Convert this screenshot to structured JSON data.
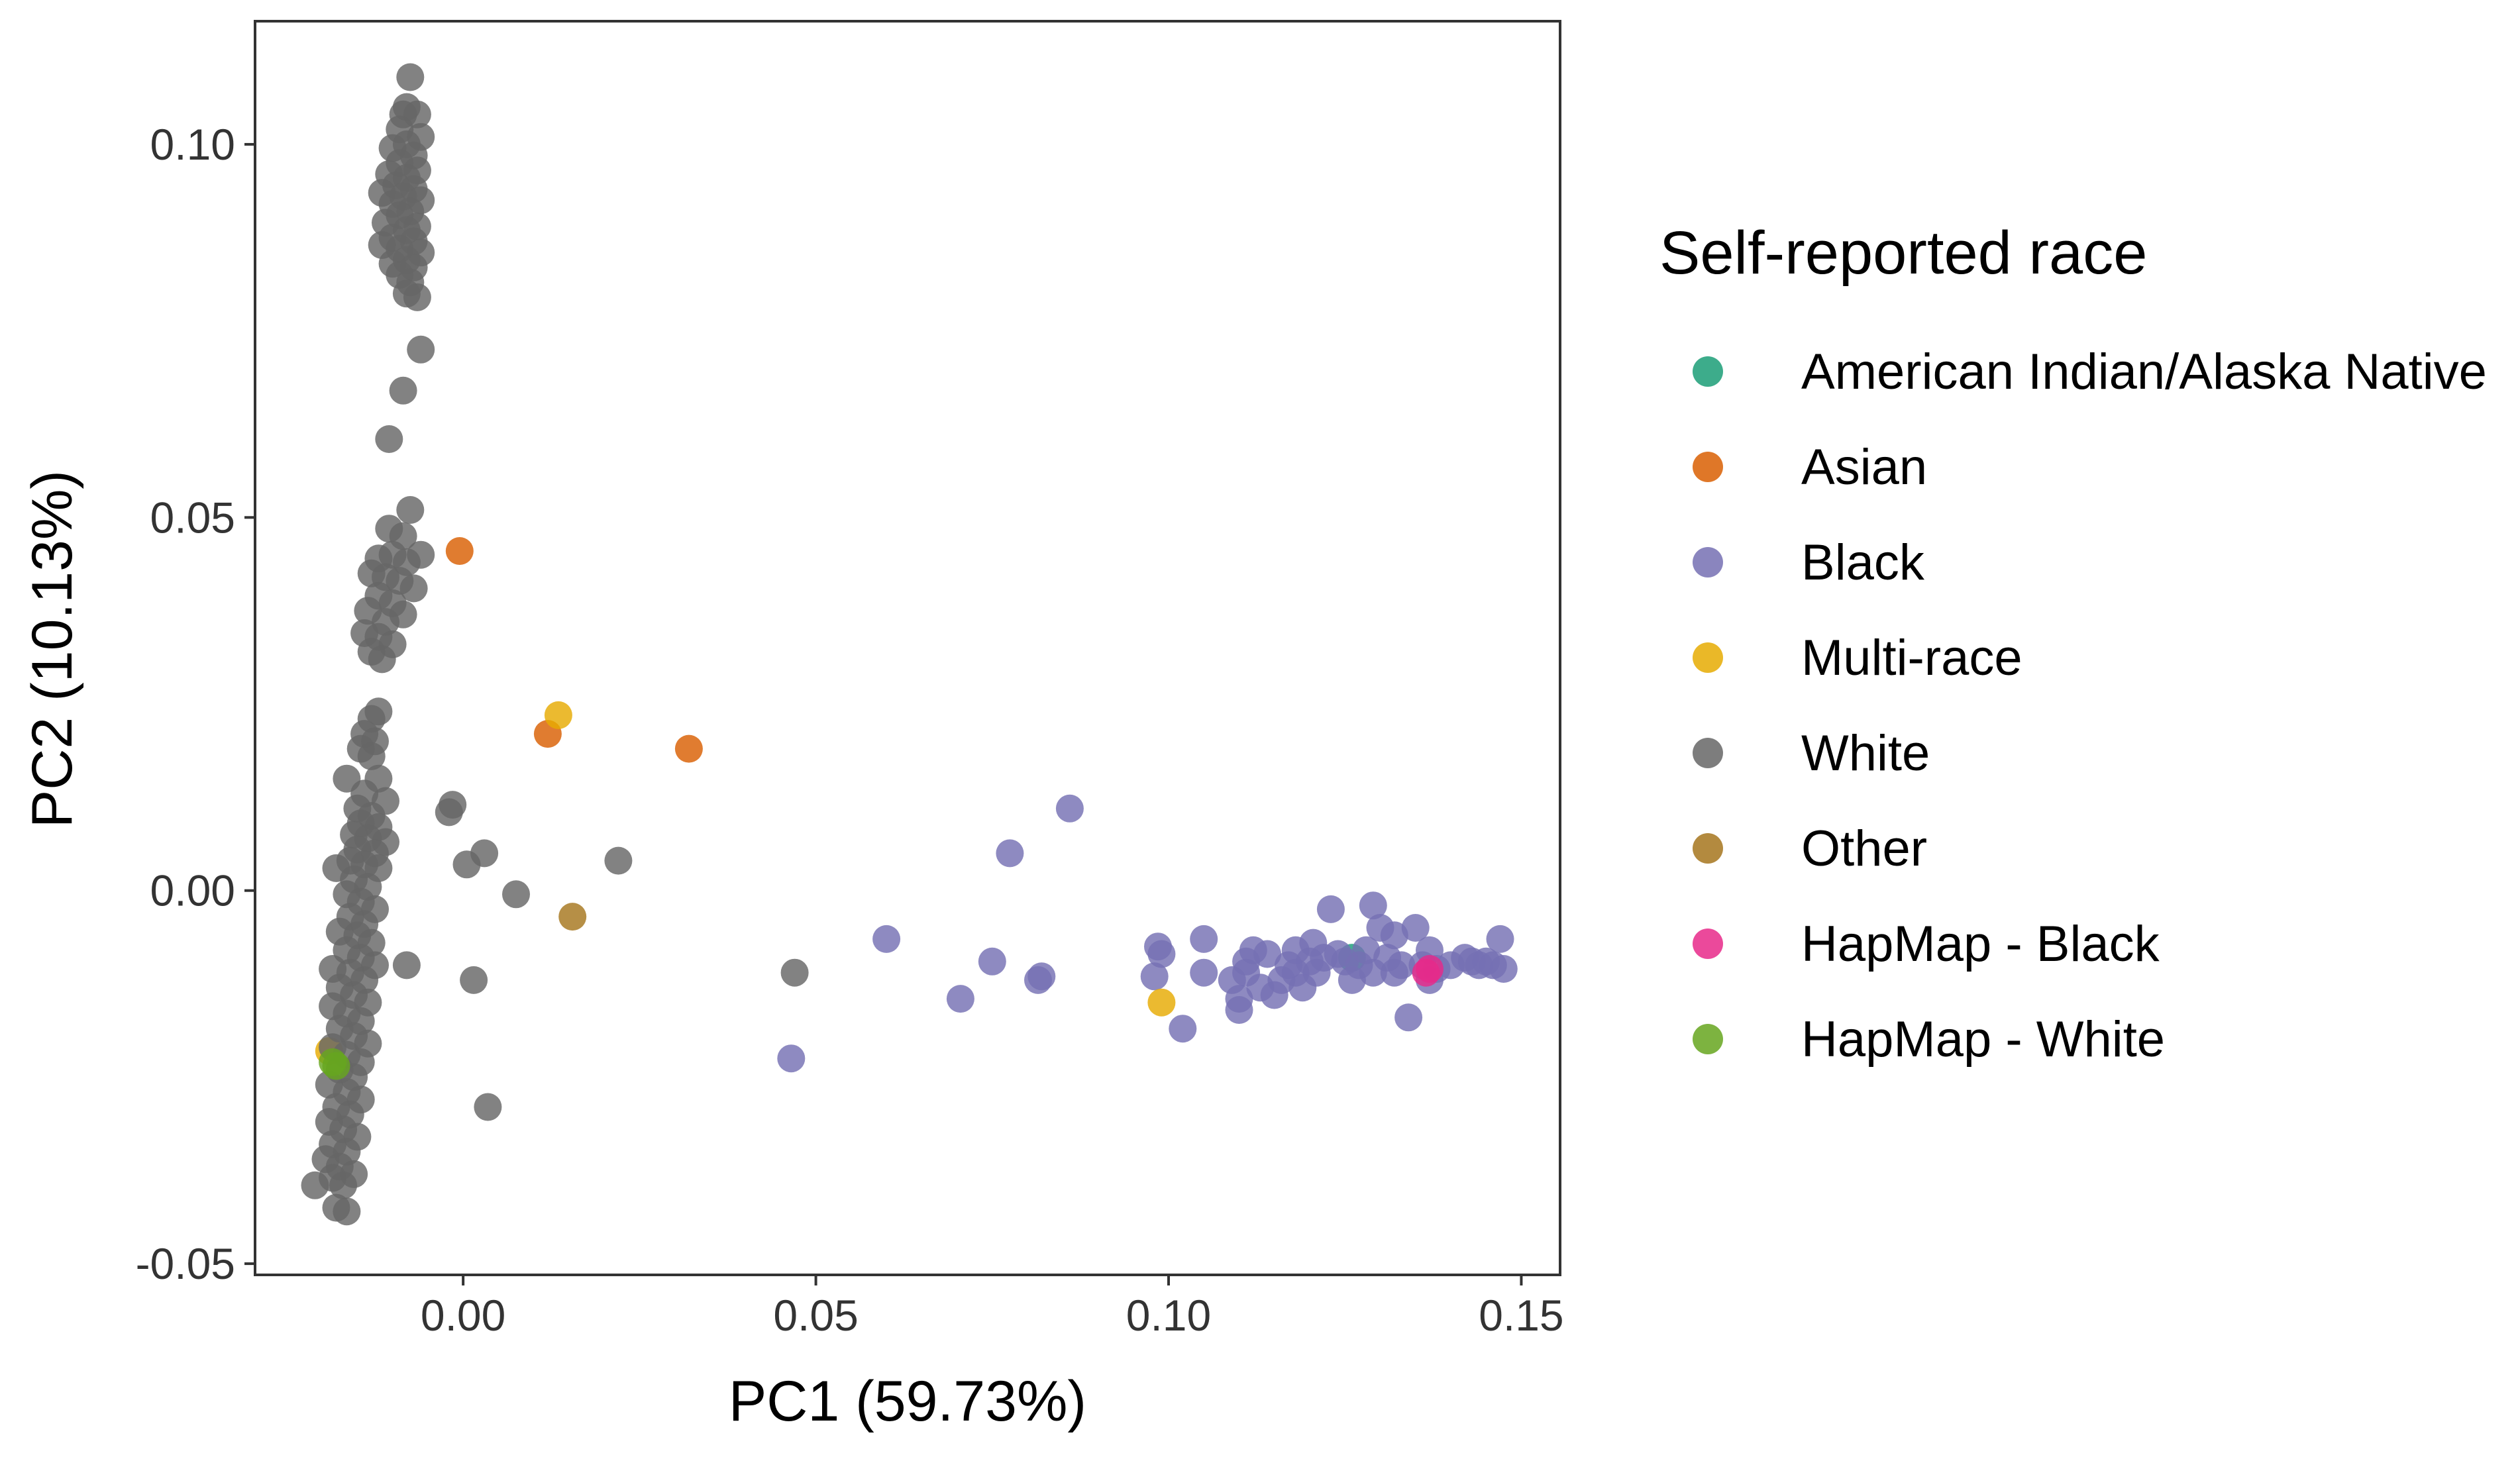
{
  "chart_data": {
    "type": "scatter",
    "title": "",
    "xlabel": "PC1 (59.73%)",
    "ylabel": "PC2 (10.13%)",
    "xlim": [
      -0.0295,
      0.1555
    ],
    "ylim": [
      -0.0515,
      0.1165
    ],
    "xticks": [
      0.0,
      0.05,
      0.1,
      0.15
    ],
    "xtick_labels": [
      "0.00",
      "0.05",
      "0.10",
      "0.15"
    ],
    "yticks": [
      -0.05,
      0.0,
      0.05,
      0.1
    ],
    "ytick_labels": [
      "-0.05",
      "0.00",
      "0.05",
      "0.10"
    ],
    "grid": false,
    "legend": {
      "title": "Self-reported race",
      "placement": "right"
    },
    "series": [
      {
        "name": "American Indian/Alaska Native",
        "color": "#1b9e77",
        "points": [
          [
            0.126,
            -0.009
          ]
        ]
      },
      {
        "name": "Asian",
        "color": "#d95f02",
        "points": [
          [
            -0.0005,
            0.0455
          ],
          [
            0.012,
            0.021
          ],
          [
            0.032,
            0.019
          ]
        ]
      },
      {
        "name": "Black",
        "color": "#7570b3",
        "points": [
          [
            0.086,
            0.011
          ],
          [
            0.0775,
            0.005
          ],
          [
            0.06,
            -0.0065
          ],
          [
            0.075,
            -0.0095
          ],
          [
            0.082,
            -0.0115
          ],
          [
            0.0815,
            -0.012
          ],
          [
            0.0705,
            -0.0145
          ],
          [
            0.0465,
            -0.0225
          ],
          [
            0.0985,
            -0.0075
          ],
          [
            0.099,
            -0.0085
          ],
          [
            0.098,
            -0.0115
          ],
          [
            0.102,
            -0.0185
          ],
          [
            0.105,
            -0.0065
          ],
          [
            0.105,
            -0.011
          ],
          [
            0.109,
            -0.012
          ],
          [
            0.11,
            -0.0145
          ],
          [
            0.11,
            -0.016
          ],
          [
            0.111,
            -0.011
          ],
          [
            0.111,
            -0.0095
          ],
          [
            0.112,
            -0.008
          ],
          [
            0.113,
            -0.013
          ],
          [
            0.114,
            -0.0085
          ],
          [
            0.115,
            -0.014
          ],
          [
            0.116,
            -0.012
          ],
          [
            0.117,
            -0.01
          ],
          [
            0.118,
            -0.008
          ],
          [
            0.118,
            -0.011
          ],
          [
            0.119,
            -0.013
          ],
          [
            0.12,
            -0.0095
          ],
          [
            0.1205,
            -0.007
          ],
          [
            0.121,
            -0.011
          ],
          [
            0.122,
            -0.009
          ],
          [
            0.123,
            -0.0025
          ],
          [
            0.124,
            -0.0085
          ],
          [
            0.125,
            -0.0095
          ],
          [
            0.126,
            -0.012
          ],
          [
            0.127,
            -0.01
          ],
          [
            0.128,
            -0.008
          ],
          [
            0.129,
            -0.002
          ],
          [
            0.129,
            -0.011
          ],
          [
            0.13,
            -0.005
          ],
          [
            0.131,
            -0.009
          ],
          [
            0.132,
            -0.006
          ],
          [
            0.132,
            -0.011
          ],
          [
            0.133,
            -0.01
          ],
          [
            0.134,
            -0.017
          ],
          [
            0.135,
            -0.005
          ],
          [
            0.136,
            -0.01
          ],
          [
            0.137,
            -0.008
          ],
          [
            0.137,
            -0.012
          ],
          [
            0.138,
            -0.0105
          ],
          [
            0.14,
            -0.01
          ],
          [
            0.142,
            -0.009
          ],
          [
            0.143,
            -0.0095
          ],
          [
            0.144,
            -0.01
          ],
          [
            0.145,
            -0.0095
          ],
          [
            0.146,
            -0.01
          ],
          [
            0.147,
            -0.0065
          ],
          [
            0.1475,
            -0.0105
          ]
        ]
      },
      {
        "name": "Multi-race",
        "color": "#e6ab02",
        "points": [
          [
            0.0135,
            0.0235
          ],
          [
            0.099,
            -0.015
          ],
          [
            -0.019,
            -0.0215
          ]
        ]
      },
      {
        "name": "White",
        "color": "#666666",
        "points": [
          [
            -0.0075,
            0.109
          ],
          [
            -0.008,
            0.105
          ],
          [
            -0.0085,
            0.104
          ],
          [
            -0.0065,
            0.104
          ],
          [
            -0.009,
            0.102
          ],
          [
            -0.006,
            0.101
          ],
          [
            -0.008,
            0.1
          ],
          [
            -0.01,
            0.0995
          ],
          [
            -0.007,
            0.0985
          ],
          [
            -0.009,
            0.0975
          ],
          [
            -0.0065,
            0.0965
          ],
          [
            -0.0105,
            0.096
          ],
          [
            -0.008,
            0.0955
          ],
          [
            -0.0095,
            0.0945
          ],
          [
            -0.007,
            0.094
          ],
          [
            -0.0115,
            0.0935
          ],
          [
            -0.0085,
            0.093
          ],
          [
            -0.006,
            0.0925
          ],
          [
            -0.01,
            0.092
          ],
          [
            -0.0075,
            0.091
          ],
          [
            -0.009,
            0.0905
          ],
          [
            -0.011,
            0.0895
          ],
          [
            -0.0065,
            0.089
          ],
          [
            -0.008,
            0.0885
          ],
          [
            -0.01,
            0.0875
          ],
          [
            -0.007,
            0.087
          ],
          [
            -0.0115,
            0.0865
          ],
          [
            -0.009,
            0.086
          ],
          [
            -0.006,
            0.0855
          ],
          [
            -0.008,
            0.0845
          ],
          [
            -0.01,
            0.084
          ],
          [
            -0.007,
            0.0835
          ],
          [
            -0.009,
            0.0825
          ],
          [
            -0.0075,
            0.0815
          ],
          [
            -0.008,
            0.08
          ],
          [
            -0.0065,
            0.0795
          ],
          [
            -0.006,
            0.0725
          ],
          [
            -0.0085,
            0.067
          ],
          [
            -0.0105,
            0.0605
          ],
          [
            -0.0075,
            0.051
          ],
          [
            -0.0105,
            0.0485
          ],
          [
            -0.0085,
            0.0475
          ],
          [
            -0.012,
            0.0445
          ],
          [
            -0.01,
            0.045
          ],
          [
            -0.006,
            0.045
          ],
          [
            -0.008,
            0.044
          ],
          [
            -0.013,
            0.0425
          ],
          [
            -0.011,
            0.042
          ],
          [
            -0.009,
            0.0415
          ],
          [
            -0.007,
            0.0405
          ],
          [
            -0.012,
            0.0395
          ],
          [
            -0.01,
            0.0385
          ],
          [
            -0.0135,
            0.0375
          ],
          [
            -0.0085,
            0.037
          ],
          [
            -0.011,
            0.036
          ],
          [
            -0.014,
            0.0345
          ],
          [
            -0.012,
            0.034
          ],
          [
            -0.01,
            0.033
          ],
          [
            -0.013,
            0.032
          ],
          [
            -0.0115,
            0.031
          ],
          [
            -0.012,
            0.024
          ],
          [
            -0.013,
            0.023
          ],
          [
            -0.014,
            0.021
          ],
          [
            -0.0125,
            0.02
          ],
          [
            -0.0145,
            0.019
          ],
          [
            -0.013,
            0.018
          ],
          [
            -0.0165,
            0.015
          ],
          [
            -0.012,
            0.015
          ],
          [
            -0.014,
            0.013
          ],
          [
            -0.011,
            0.012
          ],
          [
            -0.015,
            0.011
          ],
          [
            -0.013,
            0.01
          ],
          [
            -0.0145,
            0.009
          ],
          [
            -0.012,
            0.0085
          ],
          [
            -0.0155,
            0.0075
          ],
          [
            -0.0135,
            0.007
          ],
          [
            -0.011,
            0.0065
          ],
          [
            -0.015,
            0.0055
          ],
          [
            -0.0125,
            0.005
          ],
          [
            -0.016,
            0.004
          ],
          [
            -0.014,
            0.0035
          ],
          [
            -0.018,
            0.003
          ],
          [
            -0.012,
            0.003
          ],
          [
            -0.0155,
            0.0015
          ],
          [
            -0.0135,
            0.0005
          ],
          [
            -0.0165,
            -0.0005
          ],
          [
            -0.0145,
            -0.0015
          ],
          [
            -0.0125,
            -0.0025
          ],
          [
            -0.016,
            -0.0035
          ],
          [
            -0.014,
            -0.0045
          ],
          [
            -0.0175,
            -0.0055
          ],
          [
            -0.015,
            -0.006
          ],
          [
            -0.013,
            -0.007
          ],
          [
            -0.0165,
            -0.008
          ],
          [
            -0.0145,
            -0.009
          ],
          [
            -0.0125,
            -0.01
          ],
          [
            -0.0185,
            -0.0105
          ],
          [
            -0.016,
            -0.011
          ],
          [
            -0.014,
            -0.012
          ],
          [
            -0.0175,
            -0.013
          ],
          [
            -0.0155,
            -0.014
          ],
          [
            -0.0135,
            -0.015
          ],
          [
            -0.0185,
            -0.0155
          ],
          [
            -0.0165,
            -0.0165
          ],
          [
            -0.0145,
            -0.0175
          ],
          [
            -0.0175,
            -0.0185
          ],
          [
            -0.0155,
            -0.0195
          ],
          [
            -0.0135,
            -0.0205
          ],
          [
            -0.0185,
            -0.021
          ],
          [
            -0.0165,
            -0.022
          ],
          [
            -0.0145,
            -0.023
          ],
          [
            -0.0175,
            -0.024
          ],
          [
            -0.0155,
            -0.025
          ],
          [
            -0.019,
            -0.026
          ],
          [
            -0.0165,
            -0.027
          ],
          [
            -0.0145,
            -0.028
          ],
          [
            -0.018,
            -0.029
          ],
          [
            -0.016,
            -0.03
          ],
          [
            -0.019,
            -0.031
          ],
          [
            -0.017,
            -0.032
          ],
          [
            -0.015,
            -0.033
          ],
          [
            -0.0185,
            -0.034
          ],
          [
            -0.0165,
            -0.035
          ],
          [
            -0.0195,
            -0.036
          ],
          [
            -0.0175,
            -0.037
          ],
          [
            -0.0155,
            -0.038
          ],
          [
            -0.0185,
            -0.0385
          ],
          [
            -0.021,
            -0.0395
          ],
          [
            -0.017,
            -0.0395
          ],
          [
            -0.018,
            -0.0425
          ],
          [
            -0.0165,
            -0.043
          ],
          [
            -0.008,
            -0.01
          ],
          [
            -0.0015,
            0.0115
          ],
          [
            -0.002,
            0.0105
          ],
          [
            0.003,
            0.005
          ],
          [
            0.0005,
            0.0035
          ],
          [
            0.0075,
            -0.0005
          ],
          [
            0.022,
            0.004
          ],
          [
            0.0015,
            -0.012
          ],
          [
            0.0035,
            -0.029
          ],
          [
            0.047,
            -0.011
          ]
        ]
      },
      {
        "name": "Other",
        "color": "#a6761d",
        "points": [
          [
            0.0155,
            -0.0035
          ]
        ]
      },
      {
        "name": "HapMap - Black",
        "color": "#e7298a",
        "points": [
          [
            0.1365,
            -0.011
          ],
          [
            0.137,
            -0.0105
          ]
        ]
      },
      {
        "name": "HapMap - White",
        "color": "#66a61e",
        "points": [
          [
            -0.0185,
            -0.023
          ],
          [
            -0.018,
            -0.0235
          ]
        ]
      }
    ]
  }
}
